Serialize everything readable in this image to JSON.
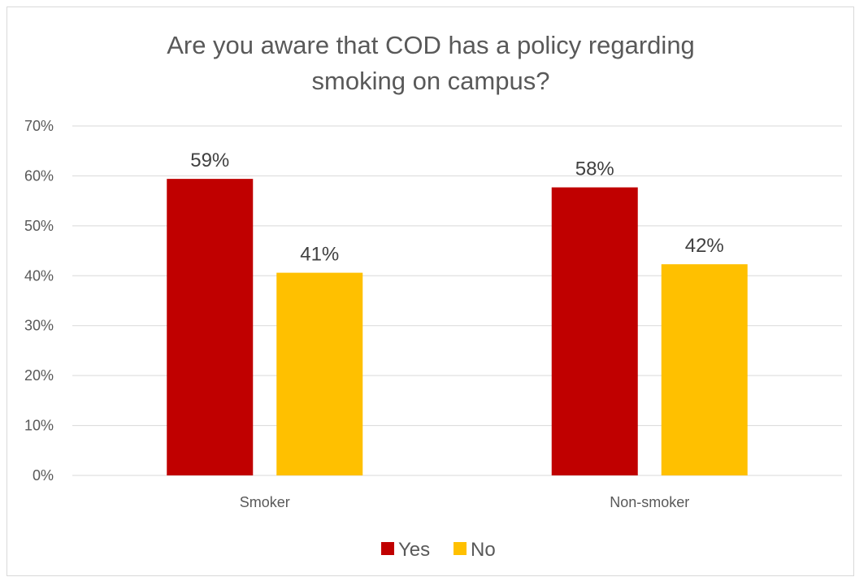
{
  "chart_data": {
    "type": "bar",
    "title_lines": [
      "Are you aware that COD has a policy regarding",
      "smoking on campus?"
    ],
    "categories": [
      "Smoker",
      "Non-smoker"
    ],
    "series": [
      {
        "name": "Yes",
        "values": [
          0.594,
          0.577
        ],
        "labels": [
          "59%",
          "58%"
        ],
        "color": "#C00000"
      },
      {
        "name": "No",
        "values": [
          0.406,
          0.423
        ],
        "labels": [
          "41%",
          "42%"
        ],
        "color": "#FFC000"
      }
    ],
    "ylim": [
      0,
      0.7
    ],
    "yticks": [
      0,
      0.1,
      0.2,
      0.3,
      0.4,
      0.5,
      0.6,
      0.7
    ],
    "ytick_labels": [
      "0%",
      "10%",
      "20%",
      "30%",
      "40%",
      "50%",
      "60%",
      "70%"
    ],
    "grid": true,
    "legend_position": "bottom",
    "gridline_color": "#d9d9d9",
    "text_color": "#595959"
  }
}
